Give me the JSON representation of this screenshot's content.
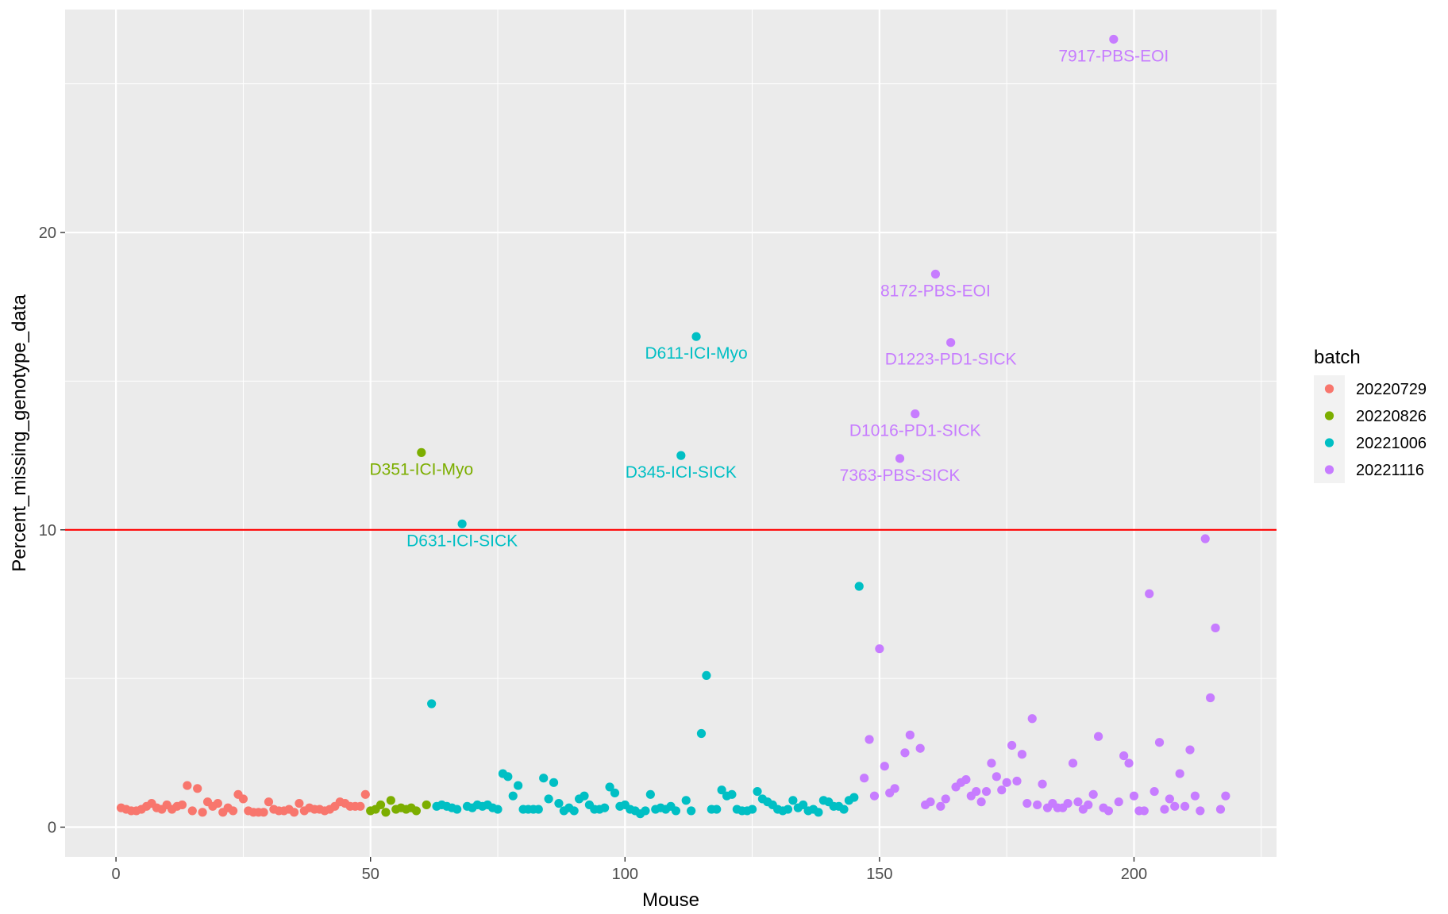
{
  "chart_data": {
    "type": "scatter",
    "title": "",
    "xlabel": "Mouse",
    "ylabel": "Percent_missing_genotype_data",
    "xlim": [
      -10,
      228
    ],
    "ylim": [
      -1,
      27.5
    ],
    "xticks": [
      0,
      50,
      100,
      150,
      200
    ],
    "yticks": [
      0,
      10,
      20
    ],
    "hline": {
      "y": 10,
      "color": "#ff0000"
    },
    "legend_title": "batch",
    "legend_position": "right",
    "series": [
      {
        "name": "20220729",
        "color": "#F8766D",
        "points": [
          [
            1,
            0.65
          ],
          [
            2,
            0.6
          ],
          [
            3,
            0.55
          ],
          [
            4,
            0.55
          ],
          [
            5,
            0.6
          ],
          [
            6,
            0.7
          ],
          [
            7,
            0.8
          ],
          [
            8,
            0.65
          ],
          [
            9,
            0.6
          ],
          [
            10,
            0.75
          ],
          [
            11,
            0.6
          ],
          [
            12,
            0.7
          ],
          [
            13,
            0.75
          ],
          [
            14,
            1.4
          ],
          [
            15,
            0.55
          ],
          [
            16,
            1.3
          ],
          [
            17,
            0.5
          ],
          [
            18,
            0.85
          ],
          [
            19,
            0.7
          ],
          [
            20,
            0.8
          ],
          [
            21,
            0.5
          ],
          [
            22,
            0.65
          ],
          [
            23,
            0.55
          ],
          [
            24,
            1.1
          ],
          [
            25,
            0.95
          ],
          [
            26,
            0.55
          ],
          [
            27,
            0.5
          ],
          [
            28,
            0.5
          ],
          [
            29,
            0.5
          ],
          [
            30,
            0.85
          ],
          [
            31,
            0.6
          ],
          [
            32,
            0.55
          ],
          [
            33,
            0.55
          ],
          [
            34,
            0.6
          ],
          [
            35,
            0.5
          ],
          [
            36,
            0.8
          ],
          [
            37,
            0.55
          ],
          [
            38,
            0.65
          ],
          [
            39,
            0.6
          ],
          [
            40,
            0.6
          ],
          [
            41,
            0.55
          ],
          [
            42,
            0.6
          ],
          [
            43,
            0.7
          ],
          [
            44,
            0.85
          ],
          [
            45,
            0.8
          ],
          [
            46,
            0.7
          ],
          [
            47,
            0.7
          ],
          [
            48,
            0.7
          ],
          [
            49,
            1.1
          ]
        ]
      },
      {
        "name": "20220826",
        "color": "#7CAE00",
        "points": [
          [
            50,
            0.55
          ],
          [
            51,
            0.6
          ],
          [
            52,
            0.75
          ],
          [
            53,
            0.5
          ],
          [
            54,
            0.9
          ],
          [
            55,
            0.6
          ],
          [
            56,
            0.65
          ],
          [
            57,
            0.6
          ],
          [
            58,
            0.65
          ],
          [
            59,
            0.55
          ],
          [
            60,
            12.6
          ],
          [
            61,
            0.75
          ]
        ]
      },
      {
        "name": "20221006",
        "color": "#00BFC4",
        "points": [
          [
            62,
            4.15
          ],
          [
            63,
            0.7
          ],
          [
            64,
            0.75
          ],
          [
            65,
            0.7
          ],
          [
            66,
            0.65
          ],
          [
            67,
            0.6
          ],
          [
            68,
            10.2
          ],
          [
            69,
            0.7
          ],
          [
            70,
            0.65
          ],
          [
            71,
            0.75
          ],
          [
            72,
            0.7
          ],
          [
            73,
            0.75
          ],
          [
            74,
            0.65
          ],
          [
            75,
            0.6
          ],
          [
            76,
            1.8
          ],
          [
            77,
            1.7
          ],
          [
            78,
            1.05
          ],
          [
            79,
            1.4
          ],
          [
            80,
            0.6
          ],
          [
            81,
            0.6
          ],
          [
            82,
            0.6
          ],
          [
            83,
            0.6
          ],
          [
            84,
            1.65
          ],
          [
            85,
            0.95
          ],
          [
            86,
            1.5
          ],
          [
            87,
            0.8
          ],
          [
            88,
            0.55
          ],
          [
            89,
            0.65
          ],
          [
            90,
            0.55
          ],
          [
            91,
            0.95
          ],
          [
            92,
            1.05
          ],
          [
            93,
            0.75
          ],
          [
            94,
            0.6
          ],
          [
            95,
            0.6
          ],
          [
            96,
            0.65
          ],
          [
            97,
            1.35
          ],
          [
            98,
            1.15
          ],
          [
            99,
            0.7
          ],
          [
            100,
            0.75
          ],
          [
            101,
            0.6
          ],
          [
            102,
            0.55
          ],
          [
            103,
            0.45
          ],
          [
            104,
            0.55
          ],
          [
            105,
            1.1
          ],
          [
            106,
            0.6
          ],
          [
            107,
            0.65
          ],
          [
            108,
            0.6
          ],
          [
            109,
            0.7
          ],
          [
            110,
            0.55
          ],
          [
            111,
            12.5
          ],
          [
            112,
            0.9
          ],
          [
            113,
            0.55
          ],
          [
            114,
            16.5
          ],
          [
            115,
            3.15
          ],
          [
            116,
            5.1
          ],
          [
            117,
            0.6
          ],
          [
            118,
            0.6
          ],
          [
            119,
            1.25
          ],
          [
            120,
            1.05
          ],
          [
            121,
            1.1
          ],
          [
            122,
            0.6
          ],
          [
            123,
            0.55
          ],
          [
            124,
            0.55
          ],
          [
            125,
            0.6
          ],
          [
            126,
            1.2
          ],
          [
            127,
            0.95
          ],
          [
            128,
            0.85
          ],
          [
            129,
            0.75
          ],
          [
            130,
            0.6
          ],
          [
            131,
            0.55
          ],
          [
            132,
            0.6
          ],
          [
            133,
            0.9
          ],
          [
            134,
            0.65
          ],
          [
            135,
            0.75
          ],
          [
            136,
            0.55
          ],
          [
            137,
            0.6
          ],
          [
            138,
            0.5
          ],
          [
            139,
            0.9
          ],
          [
            140,
            0.85
          ],
          [
            141,
            0.7
          ],
          [
            142,
            0.7
          ],
          [
            143,
            0.6
          ],
          [
            144,
            0.9
          ],
          [
            145,
            1.0
          ],
          [
            146,
            8.1
          ]
        ]
      },
      {
        "name": "20221116",
        "color": "#C77CFF",
        "points": [
          [
            147,
            1.65
          ],
          [
            148,
            2.95
          ],
          [
            149,
            1.05
          ],
          [
            150,
            6.0
          ],
          [
            151,
            2.05
          ],
          [
            152,
            1.15
          ],
          [
            153,
            1.3
          ],
          [
            154,
            12.4
          ],
          [
            155,
            2.5
          ],
          [
            156,
            3.1
          ],
          [
            157,
            13.9
          ],
          [
            158,
            2.65
          ],
          [
            159,
            0.75
          ],
          [
            160,
            0.85
          ],
          [
            161,
            18.6
          ],
          [
            162,
            0.7
          ],
          [
            163,
            0.95
          ],
          [
            164,
            16.3
          ],
          [
            165,
            1.35
          ],
          [
            166,
            1.5
          ],
          [
            167,
            1.6
          ],
          [
            168,
            1.05
          ],
          [
            169,
            1.2
          ],
          [
            170,
            0.85
          ],
          [
            171,
            1.2
          ],
          [
            172,
            2.15
          ],
          [
            173,
            1.7
          ],
          [
            174,
            1.25
          ],
          [
            175,
            1.5
          ],
          [
            176,
            2.75
          ],
          [
            177,
            1.55
          ],
          [
            178,
            2.45
          ],
          [
            179,
            0.8
          ],
          [
            180,
            3.65
          ],
          [
            181,
            0.75
          ],
          [
            182,
            1.45
          ],
          [
            183,
            0.65
          ],
          [
            184,
            0.8
          ],
          [
            185,
            0.65
          ],
          [
            186,
            0.65
          ],
          [
            187,
            0.8
          ],
          [
            188,
            2.15
          ],
          [
            189,
            0.85
          ],
          [
            190,
            0.6
          ],
          [
            191,
            0.75
          ],
          [
            192,
            1.1
          ],
          [
            193,
            3.05
          ],
          [
            194,
            0.65
          ],
          [
            195,
            0.55
          ],
          [
            196,
            26.5
          ],
          [
            197,
            0.85
          ],
          [
            198,
            2.4
          ],
          [
            199,
            2.15
          ],
          [
            200,
            1.05
          ],
          [
            201,
            0.55
          ],
          [
            202,
            0.55
          ],
          [
            203,
            7.85
          ],
          [
            204,
            1.2
          ],
          [
            205,
            2.85
          ],
          [
            206,
            0.6
          ],
          [
            207,
            0.95
          ],
          [
            208,
            0.7
          ],
          [
            209,
            1.8
          ],
          [
            210,
            0.7
          ],
          [
            211,
            2.6
          ],
          [
            212,
            1.05
          ],
          [
            213,
            0.55
          ],
          [
            214,
            9.7
          ],
          [
            215,
            4.35
          ],
          [
            216,
            6.7
          ],
          [
            217,
            0.6
          ],
          [
            218,
            1.05
          ]
        ]
      }
    ],
    "annotations": [
      {
        "text": "D351-ICI-Myo",
        "x": 60,
        "y": 12.6,
        "series": "20220826"
      },
      {
        "text": "D631-ICI-SICK",
        "x": 68,
        "y": 10.2,
        "series": "20221006"
      },
      {
        "text": "D611-ICI-Myo",
        "x": 114,
        "y": 16.5,
        "series": "20221006"
      },
      {
        "text": "D345-ICI-SICK",
        "x": 111,
        "y": 12.5,
        "series": "20221006"
      },
      {
        "text": "7917-PBS-EOI",
        "x": 196,
        "y": 26.5,
        "series": "20221116"
      },
      {
        "text": "8172-PBS-EOI",
        "x": 161,
        "y": 18.6,
        "series": "20221116"
      },
      {
        "text": "D1223-PD1-SICK",
        "x": 164,
        "y": 16.3,
        "series": "20221116"
      },
      {
        "text": "D1016-PD1-SICK",
        "x": 157,
        "y": 13.9,
        "series": "20221116"
      },
      {
        "text": "7363-PBS-SICK",
        "x": 154,
        "y": 12.4,
        "series": "20221116"
      }
    ]
  }
}
